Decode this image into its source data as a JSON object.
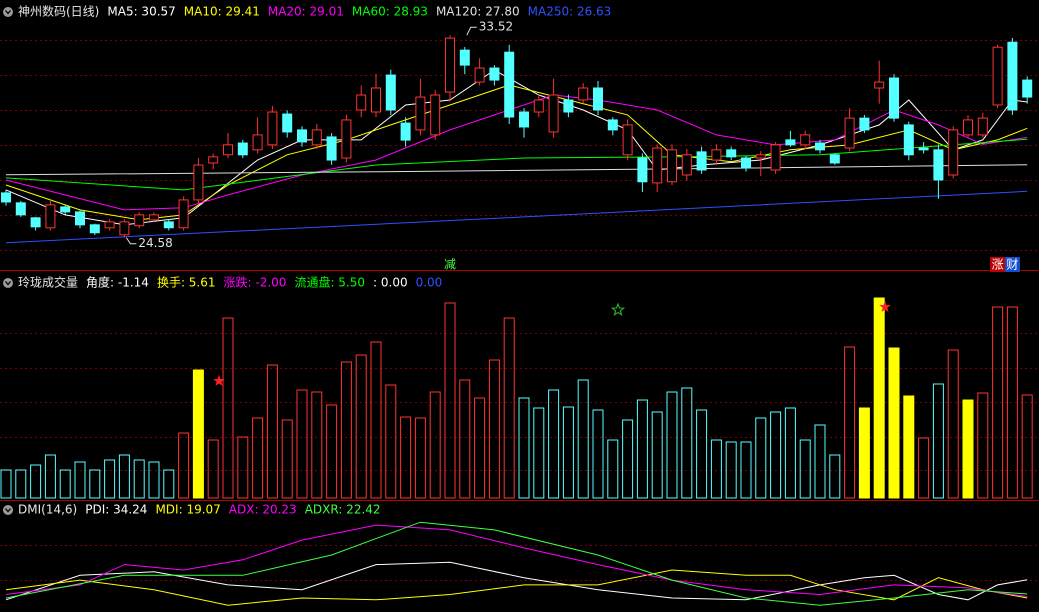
{
  "chart_data": [
    {
      "type": "candlestick",
      "title": "神州数码(日线)",
      "up_color": "#ff3232",
      "down_color": "#54ffff",
      "ylim": [
        23.2,
        34.5
      ],
      "open": [
        26.56,
        26.12,
        25.46,
        25.02,
        25.94,
        25.72,
        25.15,
        25.02,
        24.71,
        25.11,
        25.37,
        25.28,
        25.02,
        26.25,
        27.88,
        28.24,
        28.76,
        28.46,
        28.68,
        30.04,
        29.34,
        28.68,
        29.03,
        28.1,
        30.22,
        30.13,
        31.76,
        29.64,
        29.34,
        29.12,
        31.01,
        32.86,
        31.45,
        32.07,
        32.77,
        30.13,
        30.13,
        29.25,
        30.66,
        30.66,
        31.19,
        29.78,
        28.24,
        28.1,
        27.0,
        27.05,
        27.35,
        28.37,
        28.01,
        28.46,
        28.1,
        28.1,
        27.57,
        28.9,
        28.68,
        28.76,
        28.24,
        28.54,
        29.86,
        31.19,
        31.63,
        29.56,
        28.54,
        28.46,
        27.35,
        29.12,
        29.12,
        30.44,
        33.21,
        31.54
      ],
      "high": [
        26.7,
        26.2,
        25.5,
        26.2,
        26.0,
        25.8,
        25.2,
        25.4,
        25.4,
        25.7,
        25.7,
        25.4,
        26.4,
        28.1,
        28.3,
        29.2,
        28.9,
        29.9,
        30.4,
        30.2,
        29.5,
        29.6,
        29.2,
        30.0,
        31.3,
        31.8,
        32.0,
        29.9,
        31.6,
        31.1,
        33.52,
        33.0,
        32.5,
        32.2,
        33.1,
        30.3,
        30.9,
        31.6,
        30.9,
        31.4,
        31.5,
        29.9,
        29.8,
        28.3,
        28.7,
        28.7,
        28.5,
        28.6,
        28.7,
        28.6,
        28.2,
        28.4,
        28.8,
        29.3,
        29.3,
        28.9,
        28.3,
        30.3,
        30.0,
        32.4,
        31.8,
        29.7,
        28.8,
        28.7,
        29.5,
        30.0,
        30.1,
        33.1,
        33.4,
        31.7
      ],
      "low": [
        26.0,
        25.5,
        24.9,
        24.9,
        25.6,
        25.0,
        24.7,
        24.9,
        24.58,
        25.0,
        25.3,
        24.9,
        24.9,
        26.1,
        27.6,
        28.1,
        28.1,
        28.3,
        28.5,
        29.0,
        28.6,
        28.5,
        27.8,
        27.9,
        29.9,
        29.9,
        30.0,
        28.6,
        29.1,
        28.9,
        30.6,
        31.8,
        31.3,
        31.3,
        29.6,
        29.0,
        29.9,
        29.0,
        29.9,
        30.5,
        30.0,
        29.1,
        28.0,
        26.6,
        26.6,
        26.9,
        27.1,
        27.4,
        27.8,
        28.0,
        27.5,
        27.3,
        27.4,
        28.6,
        28.5,
        28.3,
        27.8,
        28.4,
        29.2,
        30.5,
        29.7,
        28.0,
        28.3,
        26.3,
        27.2,
        29.0,
        29.0,
        30.3,
        30.0,
        30.5
      ],
      "close": [
        26.16,
        25.59,
        25.06,
        26.03,
        25.72,
        25.15,
        24.8,
        25.28,
        25.28,
        25.59,
        25.59,
        25.02,
        26.25,
        27.79,
        28.15,
        28.68,
        28.24,
        29.12,
        30.13,
        29.25,
        28.81,
        29.34,
        28.01,
        29.78,
        30.88,
        31.19,
        30.22,
        28.89,
        30.79,
        30.88,
        33.39,
        32.2,
        32.07,
        31.54,
        29.91,
        29.47,
        30.66,
        30.88,
        30.13,
        31.19,
        30.22,
        29.34,
        29.56,
        27.05,
        28.54,
        28.46,
        28.24,
        27.57,
        28.46,
        28.15,
        27.66,
        28.24,
        28.68,
        28.68,
        29.12,
        28.46,
        27.88,
        29.86,
        29.34,
        31.45,
        29.86,
        28.24,
        28.46,
        27.13,
        29.34,
        29.78,
        29.86,
        32.99,
        30.22,
        30.79
      ],
      "series": [
        {
          "label": "MA5: 30.57",
          "color": "#ffffff",
          "x": [
            0,
            4,
            8,
            12,
            14,
            17,
            20,
            24,
            27,
            30,
            33,
            36,
            39,
            42,
            44,
            47,
            51,
            55,
            59,
            61,
            64,
            66,
            68,
            69
          ],
          "values": [
            26.69,
            25.59,
            25.15,
            25.46,
            26.47,
            28.01,
            28.9,
            28.9,
            30.44,
            30.66,
            31.98,
            30.88,
            30.22,
            29.34,
            27.57,
            27.79,
            28.01,
            28.68,
            29.56,
            30.66,
            28.46,
            28.9,
            30.66,
            30.57
          ]
        },
        {
          "label": "MA10: 29.41",
          "color": "#ffff00",
          "x": [
            0,
            5,
            9,
            12,
            15,
            19,
            23,
            27,
            31,
            34,
            38,
            42,
            45,
            49,
            53,
            57,
            61,
            64,
            67,
            69
          ],
          "values": [
            26.91,
            25.81,
            25.37,
            25.59,
            26.91,
            28.24,
            28.9,
            29.78,
            30.66,
            31.32,
            30.66,
            30.0,
            28.24,
            27.93,
            28.46,
            28.68,
            29.34,
            28.46,
            28.9,
            29.41
          ]
        },
        {
          "label": "MA20: 29.01",
          "color": "#ff00ff",
          "x": [
            0,
            8,
            12,
            15,
            20,
            25,
            30,
            33,
            37,
            40,
            44,
            48,
            52,
            56,
            60,
            63,
            66,
            69
          ],
          "values": [
            27.13,
            25.81,
            25.9,
            26.47,
            27.35,
            28.01,
            29.34,
            30.0,
            30.88,
            30.66,
            30.22,
            29.12,
            28.68,
            28.9,
            30.22,
            29.56,
            28.7,
            29.01
          ]
        },
        {
          "label": "MA60: 28.93",
          "color": "#00ff00",
          "x": [
            0,
            12,
            25,
            35,
            45,
            55,
            69
          ],
          "values": [
            27.22,
            26.69,
            27.79,
            28.1,
            28.15,
            28.24,
            28.93
          ]
        },
        {
          "label": "MA120: 27.80",
          "color": "#e0e0e0",
          "x": [
            0,
            25,
            45,
            69
          ],
          "values": [
            27.36,
            27.49,
            27.62,
            27.8
          ]
        },
        {
          "label": "MA250: 26.63",
          "color": "#3050ff",
          "x": [
            0,
            35,
            69
          ],
          "values": [
            24.36,
            25.5,
            26.63
          ]
        }
      ],
      "annotations": [
        {
          "x": 31,
          "value": 33.52
        },
        {
          "x": 8,
          "value": 24.58
        }
      ],
      "tags": [
        {
          "x": 30,
          "text": "减",
          "color": "#40ff40"
        },
        {
          "x": 67,
          "text": "涨",
          "color": "#ffffff",
          "background": "#c00000"
        },
        {
          "x": 68,
          "text": "财",
          "color": "#ffffff",
          "background": "#1050d0"
        }
      ]
    },
    {
      "type": "volume",
      "title": "玲珑成交量",
      "ylim": [
        0,
        210
      ],
      "solid_color": "#ffff00",
      "indicators": [
        {
          "label": "角度: -1.14",
          "color": "#ffffff"
        },
        {
          "label": "换手: 5.61",
          "color": "#ffff00"
        },
        {
          "label": "涨跌: -2.00",
          "color": "#ff00ff"
        },
        {
          "label": "流通盘: 5.50",
          "color": "#00ff00"
        },
        {
          "label": ": 0.00",
          "color": "#ffffff"
        },
        {
          "label": "0.00",
          "color": "#3050ff"
        }
      ],
      "values": [
        28,
        28,
        33,
        43,
        28,
        36,
        28,
        38,
        43,
        38,
        36,
        28,
        65,
        128,
        58,
        180,
        61,
        80,
        133,
        78,
        108,
        106,
        93,
        136,
        143,
        156,
        113,
        81,
        80,
        106,
        195,
        118,
        100,
        138,
        180,
        100,
        90,
        108,
        91,
        118,
        88,
        58,
        78,
        98,
        86,
        106,
        110,
        88,
        58,
        56,
        56,
        80,
        86,
        90,
        58,
        73,
        43,
        151,
        90,
        200,
        150,
        102,
        60,
        114,
        148,
        98,
        105,
        191,
        191,
        103
      ],
      "colors": [
        "#54ffff",
        "#54ffff",
        "#54ffff",
        "#54ffff",
        "#54ffff",
        "#54ffff",
        "#54ffff",
        "#54ffff",
        "#54ffff",
        "#54ffff",
        "#54ffff",
        "#54ffff",
        "#ff3232",
        "#ffff00",
        "#ff3232",
        "#ff3232",
        "#ff3232",
        "#ff3232",
        "#ff3232",
        "#ff3232",
        "#ff3232",
        "#ff3232",
        "#ff3232",
        "#ff3232",
        "#ff3232",
        "#ff3232",
        "#ff3232",
        "#ff3232",
        "#ff3232",
        "#ff3232",
        "#ff3232",
        "#ff3232",
        "#ff3232",
        "#ff3232",
        "#ff3232",
        "#54ffff",
        "#54ffff",
        "#54ffff",
        "#54ffff",
        "#54ffff",
        "#54ffff",
        "#54ffff",
        "#54ffff",
        "#54ffff",
        "#54ffff",
        "#54ffff",
        "#54ffff",
        "#54ffff",
        "#54ffff",
        "#54ffff",
        "#54ffff",
        "#54ffff",
        "#54ffff",
        "#54ffff",
        "#54ffff",
        "#54ffff",
        "#54ffff",
        "#ff3232",
        "#ffff00",
        "#ffff00",
        "#ffff00",
        "#ffff00",
        "#ff3232",
        "#54ffff",
        "#ff3232",
        "#ffff00",
        "#ff3232",
        "#ff3232",
        "#ff3232",
        "#ff3232"
      ]
    },
    {
      "type": "line",
      "title": "DMI(14,6)",
      "ylim": [
        9,
        91
      ],
      "series": [
        {
          "label": "PDI: 34.24",
          "color": "#ffffff",
          "x": [
            0,
            5,
            10,
            15,
            20,
            25,
            30,
            35,
            40,
            45,
            50,
            55,
            58,
            60,
            63,
            65,
            67,
            69
          ],
          "values": [
            17.5,
            38,
            41,
            30,
            26,
            47,
            49,
            36,
            26,
            19,
            17.5,
            30,
            36,
            38,
            22,
            17.5,
            30,
            34.24
          ]
        },
        {
          "label": "MDI: 19.07",
          "color": "#ffff00",
          "x": [
            0,
            5,
            10,
            15,
            20,
            25,
            30,
            35,
            40,
            45,
            50,
            53,
            56,
            60,
            63,
            66,
            69
          ],
          "values": [
            26,
            34,
            26,
            13,
            19,
            17.5,
            22,
            30,
            30,
            42.5,
            38,
            38,
            26,
            17.5,
            36,
            26,
            19.07
          ]
        },
        {
          "label": "ADX: 20.23",
          "color": "#ff00ff",
          "x": [
            0,
            5,
            8,
            12,
            16,
            20,
            25,
            30,
            35,
            40,
            45,
            50,
            55,
            60,
            65,
            69
          ],
          "values": [
            22,
            30,
            47,
            42.5,
            51,
            67.5,
            80,
            76,
            61,
            47,
            34,
            26,
            22,
            30,
            27.5,
            20.23
          ]
        },
        {
          "label": "ADXR: 22.42",
          "color": "#40ff40",
          "x": [
            0,
            8,
            16,
            22,
            28,
            33,
            40,
            45,
            50,
            55,
            60,
            65,
            69
          ],
          "values": [
            19,
            38,
            38,
            55,
            82.5,
            76,
            55,
            34,
            19,
            13,
            19,
            26,
            22.42
          ]
        }
      ]
    }
  ]
}
